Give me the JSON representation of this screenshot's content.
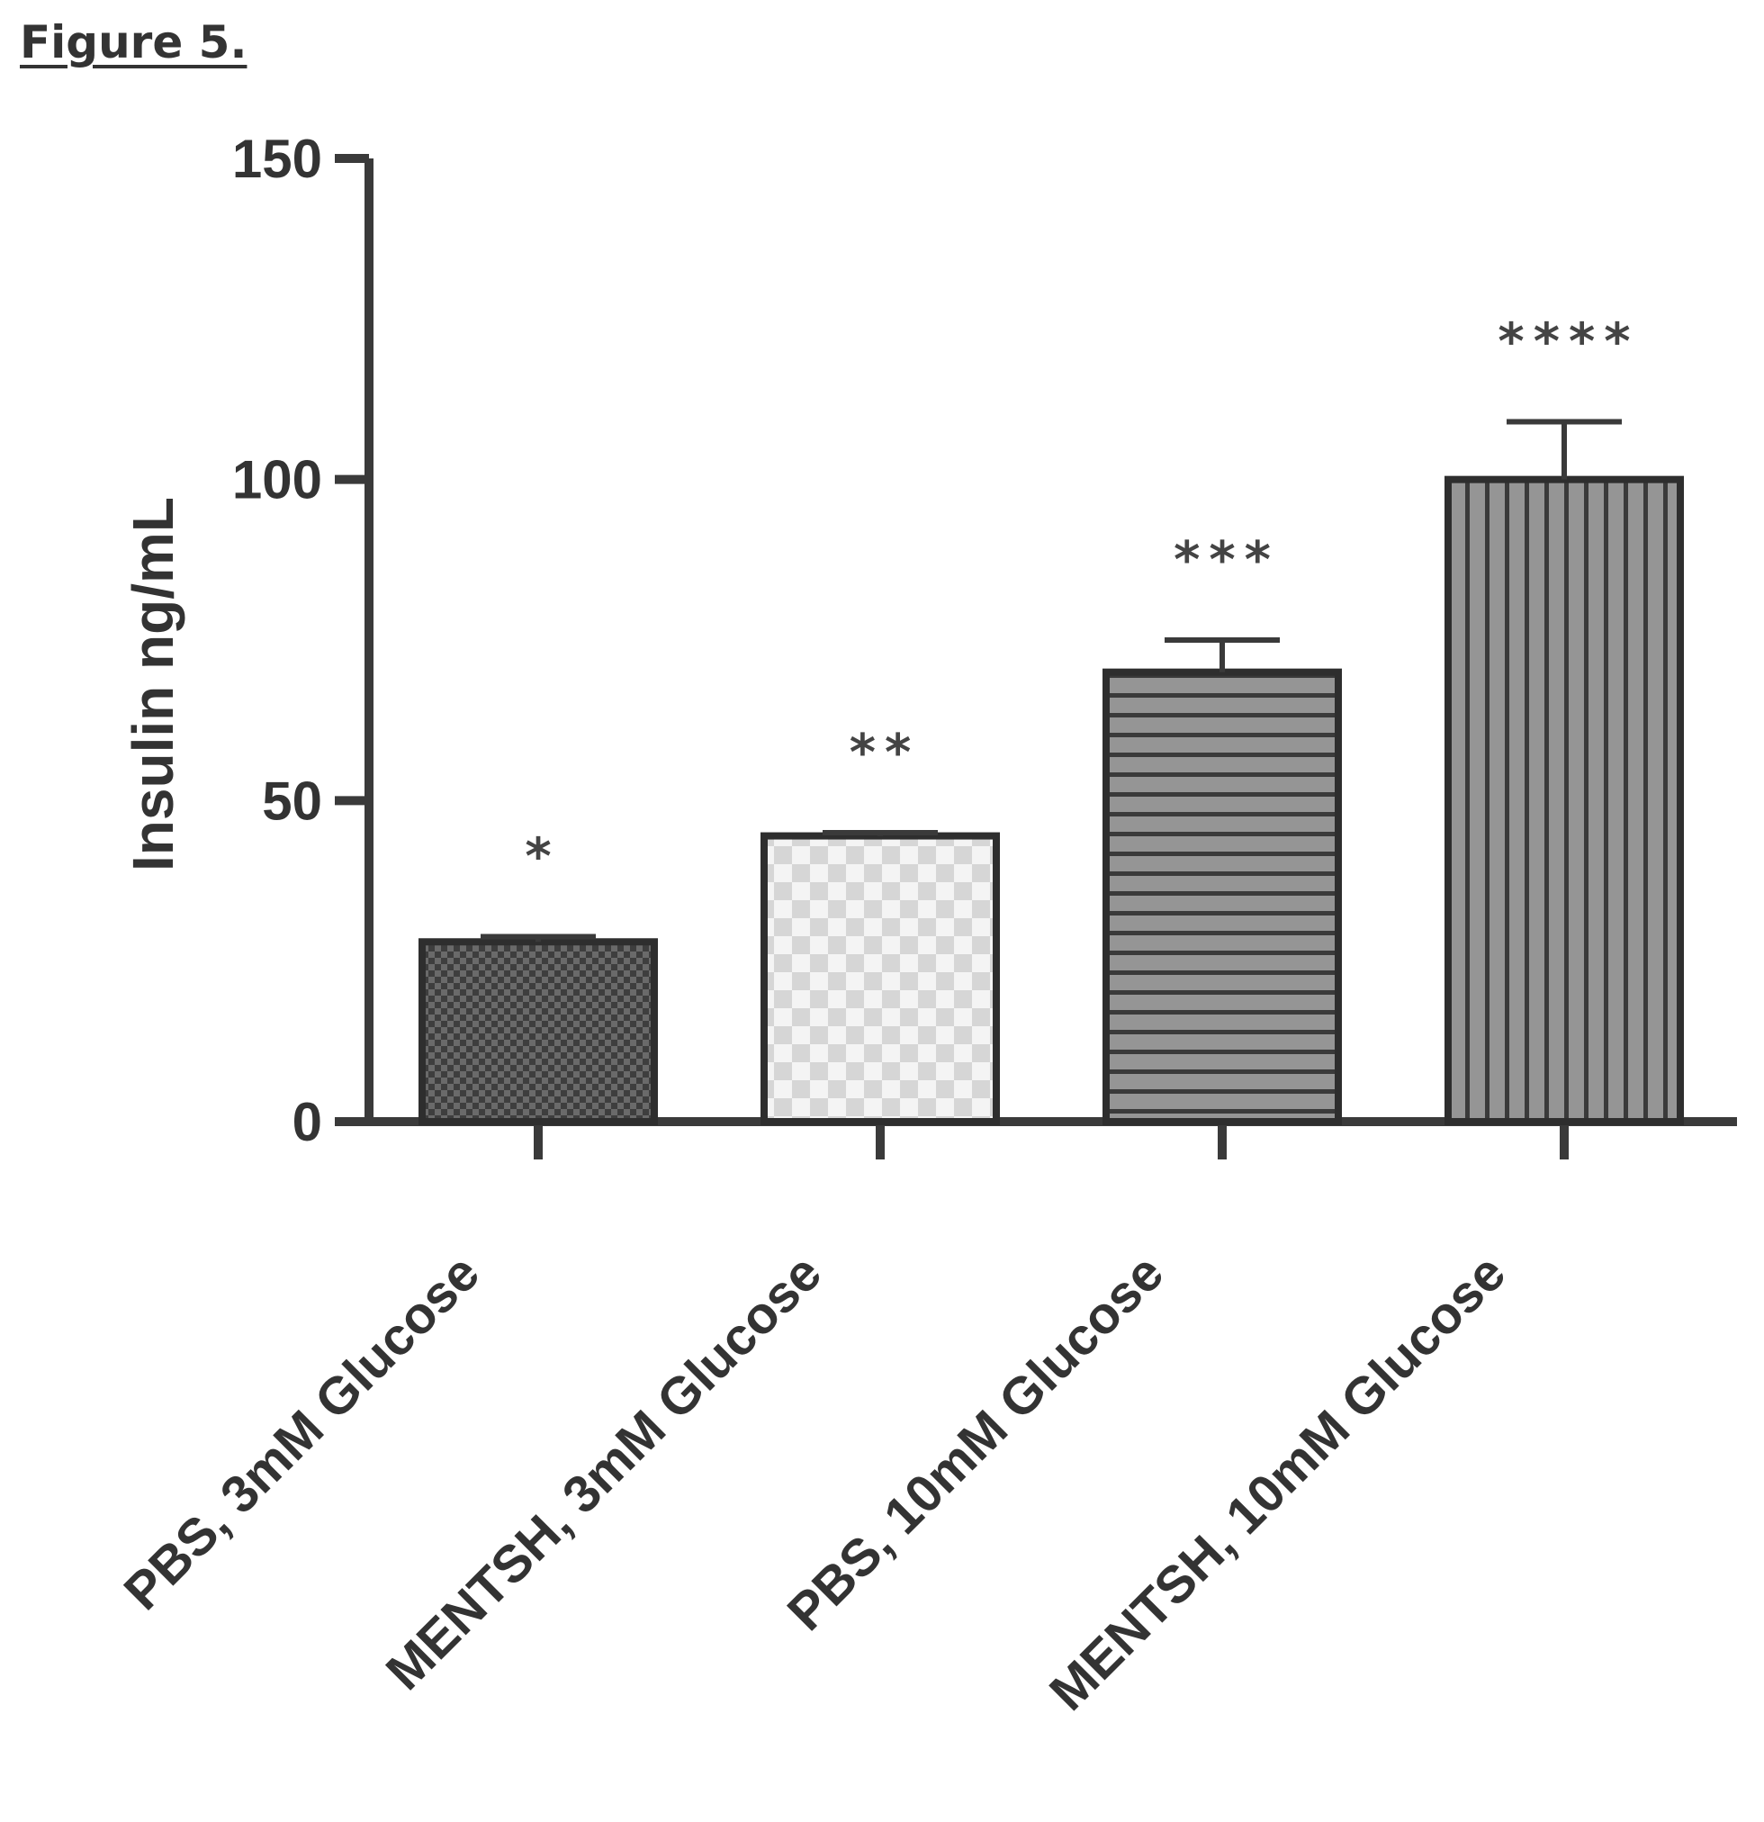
{
  "figure_label": "Figure 5.",
  "chart_data": {
    "type": "bar",
    "title": "",
    "xlabel": "",
    "ylabel": "Insulin ng/mL",
    "ylim": [
      0,
      150
    ],
    "yticks": [
      "0",
      "50",
      "100",
      "150"
    ],
    "grid": false,
    "legend": "none",
    "categories": [
      "PBS, 3mM Glucose",
      "MENTSH, 3mM Glucose",
      "PBS, 10mM Glucose",
      "MENTSH, 10mM Glucose"
    ],
    "values": [
      28,
      44.5,
      70,
      100
    ],
    "error": [
      0.8,
      0.5,
      5,
      9
    ],
    "significance": [
      "*",
      "**",
      "***",
      "****"
    ],
    "patterns": [
      "dark-checker",
      "light-checker",
      "horizontal-stripes",
      "vertical-stripes"
    ],
    "colors": {
      "axis": "#3a3a3a",
      "bar_outline": "#2e2e2e",
      "dark_fill": "#5a5a5a",
      "light_fill": "#f2f2f2",
      "stripe_fill": "#8f8f8f",
      "stripe_line": "#3a3a3a"
    }
  }
}
